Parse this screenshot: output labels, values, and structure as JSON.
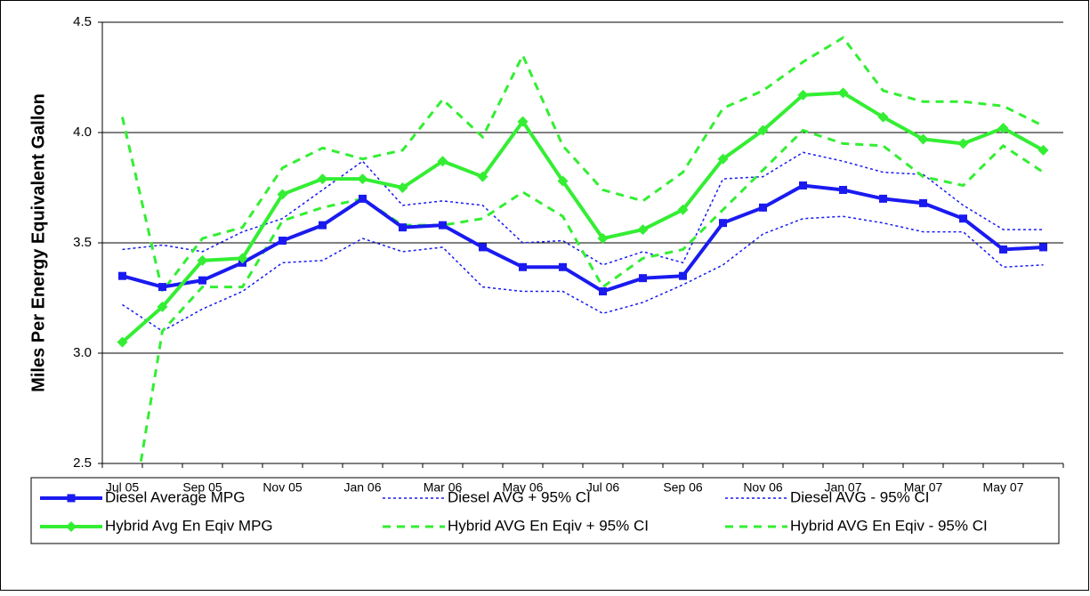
{
  "chart_data": {
    "type": "line",
    "y_label": "Miles Per Energy Equivalent Gallon",
    "categories": [
      "Jul 05",
      null,
      "Sep 05",
      null,
      "Nov 05",
      null,
      "Jan 06",
      null,
      "Mar 06",
      null,
      "May 06",
      null,
      "Jul 06",
      null,
      "Sep 06",
      null,
      "Nov 06",
      null,
      "Jan 07",
      null,
      "Mar 07",
      null,
      "May 07",
      null
    ],
    "series": [
      {
        "name": "Diesel Average MPG",
        "color": "#1a1af0",
        "line_style": "solid",
        "marker": "square",
        "values": [
          3.35,
          3.3,
          3.33,
          3.41,
          3.51,
          3.58,
          3.7,
          3.57,
          3.58,
          3.48,
          3.39,
          3.39,
          3.28,
          3.34,
          3.35,
          3.59,
          3.66,
          3.76,
          3.74,
          3.7,
          3.68,
          3.61,
          3.47,
          3.48
        ]
      },
      {
        "name": "Diesel AVG + 95% CI",
        "color": "#1a1af0",
        "line_style": "dotted",
        "marker": null,
        "values": [
          3.47,
          3.49,
          3.46,
          3.55,
          3.61,
          3.74,
          3.87,
          3.67,
          3.69,
          3.67,
          3.5,
          3.51,
          3.4,
          3.46,
          3.41,
          3.79,
          3.8,
          3.91,
          3.87,
          3.82,
          3.81,
          3.67,
          3.56,
          3.56
        ]
      },
      {
        "name": "Diesel AVG - 95% CI",
        "color": "#1a1af0",
        "line_style": "dotted",
        "marker": null,
        "values": [
          3.22,
          3.1,
          3.2,
          3.28,
          3.41,
          3.42,
          3.52,
          3.46,
          3.48,
          3.3,
          3.28,
          3.28,
          3.18,
          3.23,
          3.31,
          3.4,
          3.54,
          3.61,
          3.62,
          3.59,
          3.55,
          3.55,
          3.39,
          3.4
        ]
      },
      {
        "name": "Hybrid Avg En Eqiv MPG",
        "color": "#33ee33",
        "line_style": "solid",
        "marker": "diamond",
        "values": [
          3.05,
          3.21,
          3.42,
          3.43,
          3.72,
          3.79,
          3.79,
          3.75,
          3.87,
          3.8,
          4.05,
          3.78,
          3.52,
          3.56,
          3.65,
          3.88,
          4.01,
          4.17,
          4.18,
          4.07,
          3.97,
          3.95,
          4.02,
          3.92
        ]
      },
      {
        "name": "Hybrid AVG En Eqiv + 95% CI",
        "color": "#33ee33",
        "line_style": "dashed",
        "marker": null,
        "values": [
          4.07,
          3.28,
          3.52,
          3.57,
          3.84,
          3.93,
          3.88,
          3.92,
          4.15,
          3.98,
          4.35,
          3.94,
          3.74,
          3.69,
          3.82,
          4.11,
          4.19,
          4.32,
          4.43,
          4.19,
          4.14,
          4.14,
          4.12,
          4.03
        ]
      },
      {
        "name": "Hybrid AVG En Eqiv - 95% CI",
        "color": "#33ee33",
        "line_style": "dashed",
        "marker": null,
        "values": [
          2.0,
          3.1,
          3.3,
          3.3,
          3.6,
          3.66,
          3.7,
          3.58,
          3.58,
          3.61,
          3.73,
          3.62,
          3.3,
          3.43,
          3.47,
          3.65,
          3.83,
          4.01,
          3.95,
          3.94,
          3.8,
          3.76,
          3.94,
          3.82
        ]
      }
    ],
    "ylim": [
      2.5,
      4.5
    ],
    "yticks": [
      2.5,
      {
        "value": 3,
        "label": "3.0"
      },
      3.5,
      {
        "value": 4,
        "label": "4.0"
      },
      4.5
    ],
    "grid": true,
    "legend_position": "bottom"
  }
}
